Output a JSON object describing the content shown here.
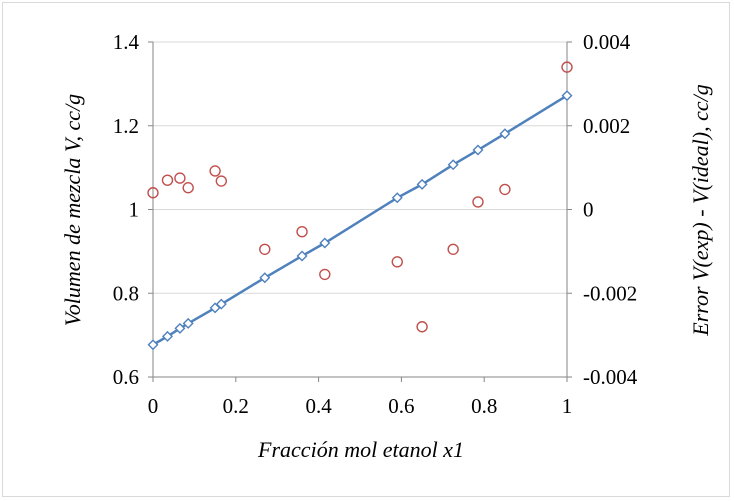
{
  "chart_data": {
    "type": "scatter",
    "title": "",
    "xlabel": "Fracción mol etanol x1",
    "ylabel_left": "Volumen de mezcla V, cc/g",
    "ylabel_right": "Error V(exp) - V(ideal), cc/g",
    "xlim": [
      0,
      1
    ],
    "ylim_left": [
      0.6,
      1.4
    ],
    "ylim_right": [
      -0.004,
      0.004
    ],
    "x_ticks": [
      "0",
      "0.2",
      "0.4",
      "0.6",
      "0.8",
      "1"
    ],
    "y_ticks_left": [
      "0.6",
      "0.8",
      "1",
      "1.2",
      "1.4"
    ],
    "y_ticks_right": [
      "-0.004",
      "-0.002",
      "0",
      "0.002",
      "0.004"
    ],
    "grid": "horizontal",
    "legend": "none",
    "series": [
      {
        "kind": "line-with-diamond-markers",
        "axis": "left",
        "color": "#4f81bd",
        "x": [
          0,
          0.035,
          0.065,
          0.085,
          0.15,
          0.165,
          0.27,
          0.36,
          0.415,
          0.59,
          0.65,
          0.725,
          0.785,
          0.85,
          1.0
        ],
        "y": [
          0.677,
          0.697,
          0.716,
          0.728,
          0.765,
          0.774,
          0.837,
          0.889,
          0.92,
          1.028,
          1.06,
          1.107,
          1.142,
          1.181,
          1.272
        ]
      },
      {
        "kind": "open-circle-markers",
        "axis": "right",
        "color": "#c0504d",
        "x": [
          0,
          0.035,
          0.065,
          0.085,
          0.15,
          0.165,
          0.27,
          0.36,
          0.415,
          0.59,
          0.65,
          0.725,
          0.785,
          0.85,
          1.0
        ],
        "y": [
          0.0004,
          0.0007,
          0.00075,
          0.00052,
          0.00092,
          0.00068,
          -0.00095,
          -0.00053,
          -0.00155,
          -0.00125,
          -0.0028,
          -0.00095,
          0.00018,
          0.00048,
          0.0034
        ]
      }
    ]
  }
}
